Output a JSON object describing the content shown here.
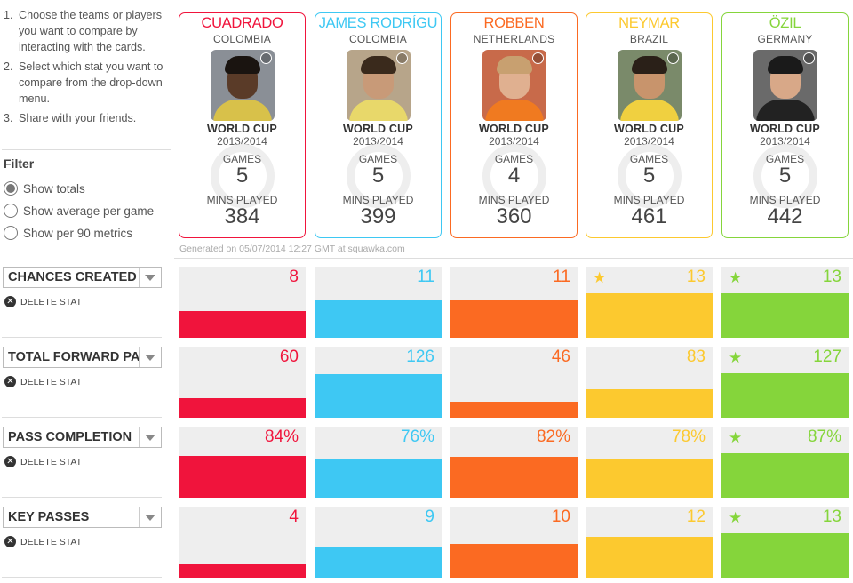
{
  "instructions": [
    {
      "num": "1.",
      "text": "Choose the teams or players you want to compare by interacting with the cards."
    },
    {
      "num": "2.",
      "text": "Select which stat you want to compare from the drop-down menu."
    },
    {
      "num": "3.",
      "text": "Share with your friends."
    }
  ],
  "filter": {
    "title": "Filter",
    "options": [
      "Show totals",
      "Show average per game",
      "Show per 90 metrics"
    ],
    "selected_index": 0
  },
  "card_labels": {
    "competition": "WORLD CUP",
    "season": "2013/2014",
    "games": "GAMES",
    "mins": "MINS PLAYED"
  },
  "players": [
    {
      "name": "CUADRADO",
      "country": "COLOMBIA",
      "games": "5",
      "mins": "384",
      "color": "#f0143c"
    },
    {
      "name": "JAMES RODRÍGU",
      "country": "COLOMBIA",
      "games": "5",
      "mins": "399",
      "color": "#3ec8f3"
    },
    {
      "name": "ROBBEN",
      "country": "NETHERLANDS",
      "games": "4",
      "mins": "360",
      "color": "#fb6a22"
    },
    {
      "name": "NEYMAR",
      "country": "BRAZIL",
      "games": "5",
      "mins": "461",
      "color": "#fcc92f"
    },
    {
      "name": "ÖZIL",
      "country": "GERMANY",
      "games": "5",
      "mins": "442",
      "color": "#85d53b"
    }
  ],
  "generated": "Generated on 05/07/2014 12:27 GMT at squawka.com",
  "delete_label": "DELETE STAT",
  "stats": [
    {
      "label": "CHANCES CREATED",
      "values": [
        "8",
        "11",
        "11",
        "13",
        "13"
      ],
      "fill": [
        0.38,
        0.52,
        0.52,
        0.62,
        0.62
      ],
      "star": [
        false,
        false,
        false,
        true,
        true
      ]
    },
    {
      "label": "TOTAL FORWARD PASSES",
      "values": [
        "60",
        "126",
        "46",
        "83",
        "127"
      ],
      "fill": [
        0.28,
        0.61,
        0.22,
        0.4,
        0.62
      ],
      "star": [
        false,
        false,
        false,
        false,
        true
      ]
    },
    {
      "label": "PASS COMPLETION",
      "values": [
        "84%",
        "76%",
        "82%",
        "78%",
        "87%"
      ],
      "fill": [
        0.59,
        0.54,
        0.58,
        0.55,
        0.62
      ],
      "star": [
        false,
        false,
        false,
        false,
        true
      ]
    },
    {
      "label": "KEY PASSES",
      "values": [
        "4",
        "9",
        "10",
        "12",
        "13"
      ],
      "fill": [
        0.19,
        0.43,
        0.48,
        0.57,
        0.62
      ],
      "star": [
        false,
        false,
        false,
        false,
        true
      ]
    }
  ],
  "icons": {
    "star": "star-icon",
    "delete": "delete-icon",
    "dropdown": "chevron-down-icon"
  }
}
